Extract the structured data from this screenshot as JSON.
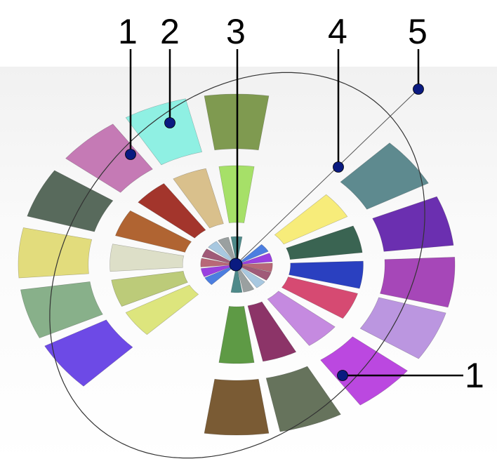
{
  "labels": [
    {
      "text": "1",
      "target": "outer-ellipse"
    },
    {
      "text": "2",
      "target": "outer-ring-segment"
    },
    {
      "text": "3",
      "target": "center-point"
    },
    {
      "text": "4",
      "target": "radial-line-point"
    },
    {
      "text": "5",
      "target": "radial-line-end"
    },
    {
      "text": "1",
      "target": "outer-ellipse"
    }
  ],
  "rings": {
    "angles": [
      90,
      112,
      133,
      155,
      176,
      197,
      217,
      270,
      290,
      313,
      335,
      354,
      15,
      37
    ],
    "outer_colors": [
      "#7f9a50",
      "#8ff0e3",
      "#c57ab5",
      "#586a5c",
      "#e2dc7c",
      "#88b08a",
      "#6d4ae6",
      "#7a5b34",
      "#66735c",
      "#bb48e0",
      "#bb96e0",
      "#a647b8",
      "#6b2fb0",
      "#5e8a8f"
    ],
    "middle_colors": [
      "#a6e068",
      "#d9c08c",
      "#a3352c",
      "#b06432",
      "#dddfc8",
      "#bccb79",
      "#dde57d",
      "#5e9a45",
      "#8c3468",
      "#c58ae0",
      "#d64a72",
      "#2a40c0",
      "#3a6452",
      "#f7ec7a"
    ],
    "inner_colors": [
      "#4f8a8a",
      "#9aa0a0",
      "#a8c8e0",
      "#a05a78",
      "#b86878",
      "#9a40e0",
      "#4c7ee0",
      "#4f8a8a",
      "#9aa0a0",
      "#a8c8e0",
      "#a05a78",
      "#b86878",
      "#9a40e0",
      "#4c7ee0"
    ]
  },
  "marker_color": "#0a1a80"
}
